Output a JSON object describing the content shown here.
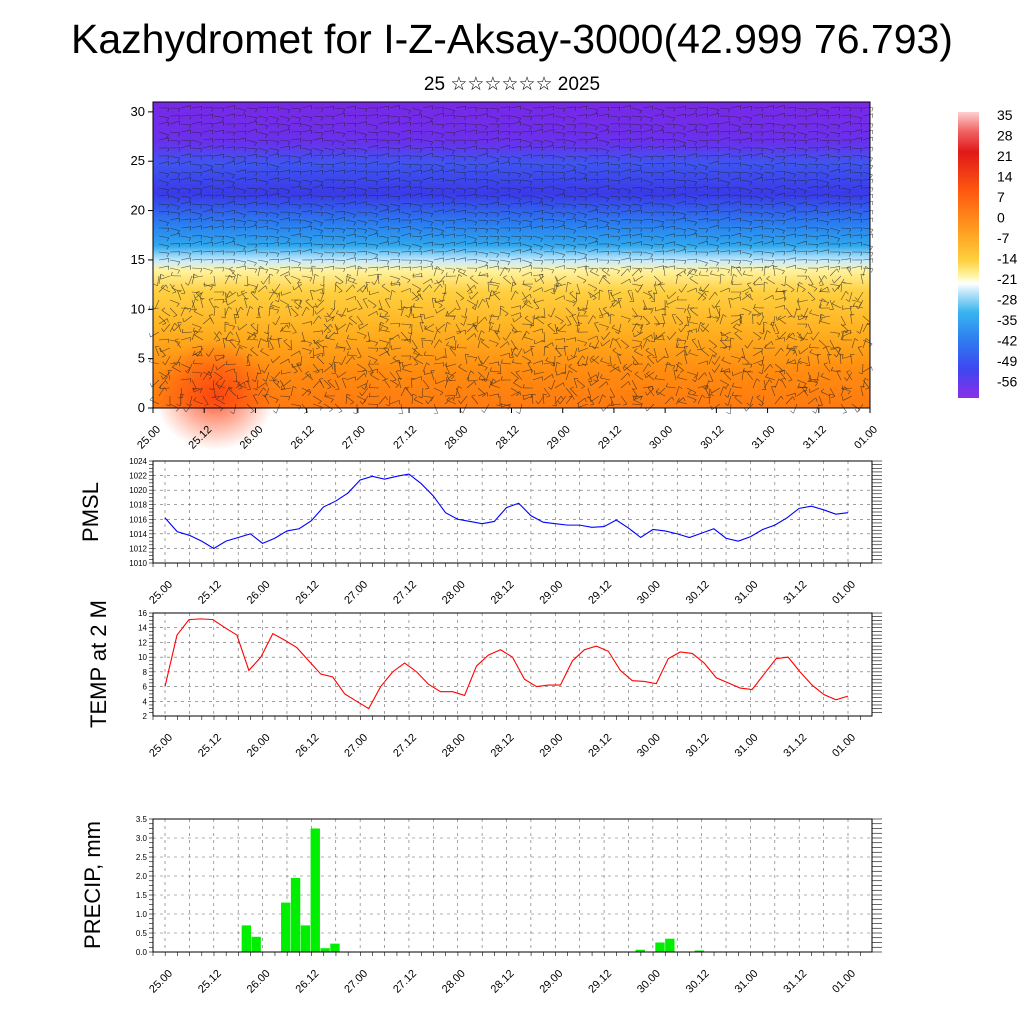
{
  "title": "Kazhydromet for I-Z-Aksay-3000(42.999 76.793)",
  "subtitle": "25 ☆☆☆☆☆☆ 2025",
  "chart_data": [
    {
      "type": "heatmap",
      "name": "vertical-cross-section",
      "ylim": [
        0,
        31
      ],
      "y_ticks": [
        0,
        5,
        10,
        15,
        20,
        25,
        30
      ],
      "x_ticks": [
        "25.00",
        "25.12",
        "26.00",
        "26.12",
        "27.00",
        "27.12",
        "28.00",
        "28.12",
        "29.00",
        "29.12",
        "30.00",
        "30.12",
        "31.00",
        "31.12",
        "01.00"
      ],
      "colorbar_labels": [
        "35",
        "28",
        "21",
        "14",
        "7",
        "0",
        "-7",
        "-14",
        "-21",
        "-28",
        "-35",
        "-42",
        "-49",
        "-56"
      ],
      "colors": [
        "#ff4010",
        "#ff8c10",
        "#ffd040",
        "#fff3a0",
        "#c9ecff",
        "#2fa8ee",
        "#3e55f0",
        "#7a28e8"
      ]
    },
    {
      "type": "line",
      "ylabel": "PMSL",
      "ylim": [
        1010,
        1024
      ],
      "y_ticks": [
        1010,
        1012,
        1014,
        1016,
        1018,
        1020,
        1022,
        1024
      ],
      "x_ticks": [
        "25.00",
        "25.12",
        "26.00",
        "26.12",
        "27.00",
        "27.12",
        "28.00",
        "28.12",
        "29.00",
        "29.12",
        "30.00",
        "30.12",
        "31.00",
        "31.12",
        "01.00"
      ],
      "color": "#0000ff",
      "values": [
        1016.2,
        1014.3,
        1013.8,
        1013.0,
        1012.0,
        1013.0,
        1013.5,
        1014.0,
        1012.7,
        1013.4,
        1014.4,
        1014.7,
        1015.8,
        1017.7,
        1018.5,
        1019.6,
        1021.4,
        1021.9,
        1021.5,
        1021.9,
        1022.2,
        1020.9,
        1019.2,
        1016.9,
        1016.0,
        1015.7,
        1015.4,
        1015.7,
        1017.6,
        1018.2,
        1016.5,
        1015.6,
        1015.4,
        1015.2,
        1015.2,
        1014.9,
        1015.0,
        1015.9,
        1014.8,
        1013.5,
        1014.6,
        1014.4,
        1014.0,
        1013.5,
        1014.1,
        1014.7,
        1013.4,
        1013.0,
        1013.6,
        1014.6,
        1015.2,
        1016.2,
        1017.5,
        1017.8,
        1017.3,
        1016.7,
        1016.9
      ]
    },
    {
      "type": "line",
      "ylabel": "TEMP at 2 M",
      "ylim": [
        2,
        16
      ],
      "y_ticks": [
        2,
        4,
        6,
        8,
        10,
        12,
        14,
        16
      ],
      "x_ticks": [
        "25.00",
        "25.12",
        "26.00",
        "26.12",
        "27.00",
        "27.12",
        "28.00",
        "28.12",
        "29.00",
        "29.12",
        "30.00",
        "30.12",
        "31.00",
        "31.12",
        "01.00"
      ],
      "color": "#ff0000",
      "values": [
        6.0,
        13.0,
        15.1,
        15.2,
        15.1,
        14.0,
        13.0,
        8.2,
        10.0,
        13.2,
        12.3,
        11.3,
        9.5,
        7.7,
        7.3,
        5.0,
        4.0,
        3.0,
        6.0,
        8.0,
        9.2,
        8.0,
        6.3,
        5.3,
        5.3,
        4.8,
        8.8,
        10.3,
        11.0,
        10.0,
        7.0,
        6.0,
        6.2,
        6.2,
        9.5,
        11.0,
        11.5,
        10.8,
        8.2,
        6.8,
        6.7,
        6.4,
        9.8,
        10.7,
        10.5,
        9.2,
        7.2,
        6.5,
        5.8,
        5.6,
        7.7,
        9.8,
        10.0,
        8.0,
        6.2,
        4.9,
        4.2,
        4.7
      ]
    },
    {
      "type": "bar",
      "ylabel": "PRECIP, mm",
      "ylim": [
        0,
        3.5
      ],
      "y_ticks": [
        "0.0",
        "0.5",
        "1.0",
        "1.5",
        "2.0",
        "2.5",
        "3.0",
        "3.5"
      ],
      "x_ticks": [
        "25.00",
        "25.12",
        "26.00",
        "26.12",
        "27.00",
        "27.12",
        "28.00",
        "28.12",
        "29.00",
        "29.12",
        "30.00",
        "30.12",
        "31.00",
        "31.12",
        "01.00"
      ],
      "color": "#00ee00",
      "values": [
        0,
        0,
        0,
        0,
        0,
        0,
        0,
        0,
        0.01,
        0.7,
        0.4,
        0,
        0,
        1.3,
        1.95,
        0.7,
        3.25,
        0.1,
        0.22,
        0,
        0,
        0,
        0,
        0,
        0,
        0,
        0,
        0,
        0,
        0,
        0,
        0,
        0,
        0,
        0,
        0,
        0,
        0,
        0,
        0,
        0,
        0,
        0,
        0,
        0,
        0,
        0,
        0,
        0,
        0.06,
        0,
        0.25,
        0.35,
        0,
        0,
        0.04,
        0,
        0,
        0,
        0,
        0,
        0,
        0,
        0,
        0,
        0,
        0,
        0,
        0,
        0,
        0,
        0,
        0
      ]
    }
  ]
}
